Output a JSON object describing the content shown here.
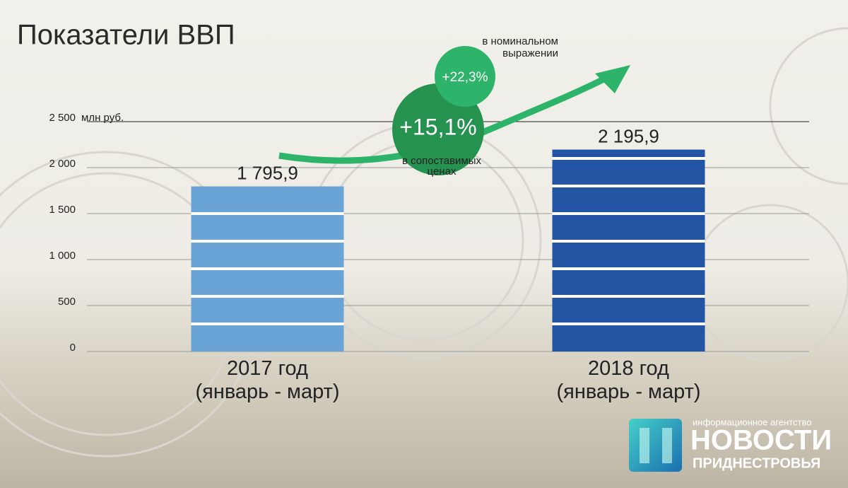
{
  "chart_data": {
    "type": "bar",
    "title": "Показатели ВВП",
    "y_unit": "млн руб.",
    "categories": [
      "2017 год\n(январь - март)",
      "2018 год\n(январь - март)"
    ],
    "values": [
      1795.9,
      2195.9
    ],
    "value_labels": [
      "1 795,9",
      "2 195,9"
    ],
    "colors": [
      "#6aa3d5",
      "#2455a4"
    ],
    "ylim": [
      0,
      2500
    ],
    "yticks": [
      0,
      500,
      {
        "value": 1000,
        "label": "1 000"
      },
      {
        "value": 1500,
        "label": "1 500"
      },
      {
        "value": 2000,
        "label": "2 000"
      },
      {
        "value": 2500,
        "label": "2 500"
      }
    ],
    "grid": true,
    "annotations": {
      "nominal_value": "+22,3%",
      "nominal_text": "в номинальном\nвыражении",
      "real_value": "+15,1%",
      "real_text": "в сопоставимых\nценах"
    }
  },
  "logo": {
    "tagline": "информационное агентство",
    "name": "НОВОСТИ",
    "region": "ПРИДНЕСТРОВЬЯ"
  }
}
